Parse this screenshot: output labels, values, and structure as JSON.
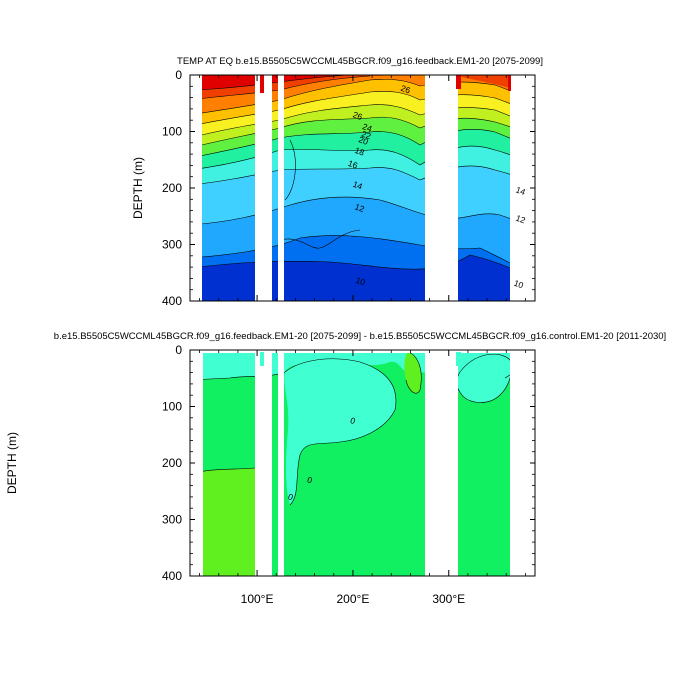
{
  "chart_data": [
    {
      "type": "heatmap",
      "title": "TEMP AT EQ b.e15.B5505C5WCCML45BGCR.f09_g16.feedback.EM1-20 [2075-2099]",
      "ylabel": "DEPTH (m)",
      "xlabel": "",
      "xlim": [
        30,
        390
      ],
      "ylim": [
        400,
        0
      ],
      "y_inverted": true,
      "yticks": [
        0,
        100,
        200,
        300,
        400
      ],
      "xticks": [],
      "contour_labels": [
        {
          "text": "26",
          "x": 255,
          "depth": 25
        },
        {
          "text": "26",
          "x": 205,
          "depth": 72
        },
        {
          "text": "24",
          "x": 215,
          "depth": 93
        },
        {
          "text": "22",
          "x": 214,
          "depth": 106
        },
        {
          "text": "20",
          "x": 211,
          "depth": 116
        },
        {
          "text": "18",
          "x": 207,
          "depth": 135
        },
        {
          "text": "16",
          "x": 200,
          "depth": 158
        },
        {
          "text": "14",
          "x": 205,
          "depth": 195
        },
        {
          "text": "12",
          "x": 207,
          "depth": 235
        },
        {
          "text": "10",
          "x": 208,
          "depth": 365
        },
        {
          "text": "14",
          "x": 375,
          "depth": 205
        },
        {
          "text": "12",
          "x": 375,
          "depth": 255
        },
        {
          "text": "10",
          "x": 373,
          "depth": 370
        }
      ],
      "land_gaps_lon": [
        [
          95,
          115
        ],
        [
          120,
          125
        ],
        [
          278,
          312
        ]
      ]
    },
    {
      "type": "heatmap",
      "title": "b.e15.B5505C5WCCML45BGCR.f09_g16.feedback.EM1-20 [2075-2099] - b.e15.B5505C5WCCML45BGCR.f09_g16.control.EM1-20 [2011-2030]",
      "ylabel": "DEPTH (m)",
      "xlabel": "",
      "xlim": [
        30,
        390
      ],
      "ylim": [
        400,
        0
      ],
      "y_inverted": true,
      "yticks": [
        0,
        100,
        200,
        300,
        400
      ],
      "xticks": [
        {
          "value": 100,
          "label": "100°E"
        },
        {
          "value": 200,
          "label": "200°E"
        },
        {
          "value": 300,
          "label": "300°E"
        }
      ],
      "contour_labels": [
        {
          "text": "0",
          "x": 200,
          "depth": 125
        },
        {
          "text": "0",
          "x": 155,
          "depth": 230
        },
        {
          "text": "0",
          "x": 135,
          "depth": 260
        }
      ],
      "land_gaps_lon": [
        [
          95,
          115
        ],
        [
          120,
          125
        ],
        [
          278,
          312
        ]
      ]
    }
  ],
  "colors": {
    "temp_levels": [
      "#0030d0",
      "#0070f0",
      "#20a8ff",
      "#40d0ff",
      "#40f0e0",
      "#20f0a0",
      "#60f040",
      "#c0f020",
      "#f8f020",
      "#ffc000",
      "#ff8000",
      "#f04000",
      "#e00000"
    ],
    "anom_pos": "#40ffd0",
    "anom_zero": "#10f060",
    "anom_neg": "#60f020"
  }
}
